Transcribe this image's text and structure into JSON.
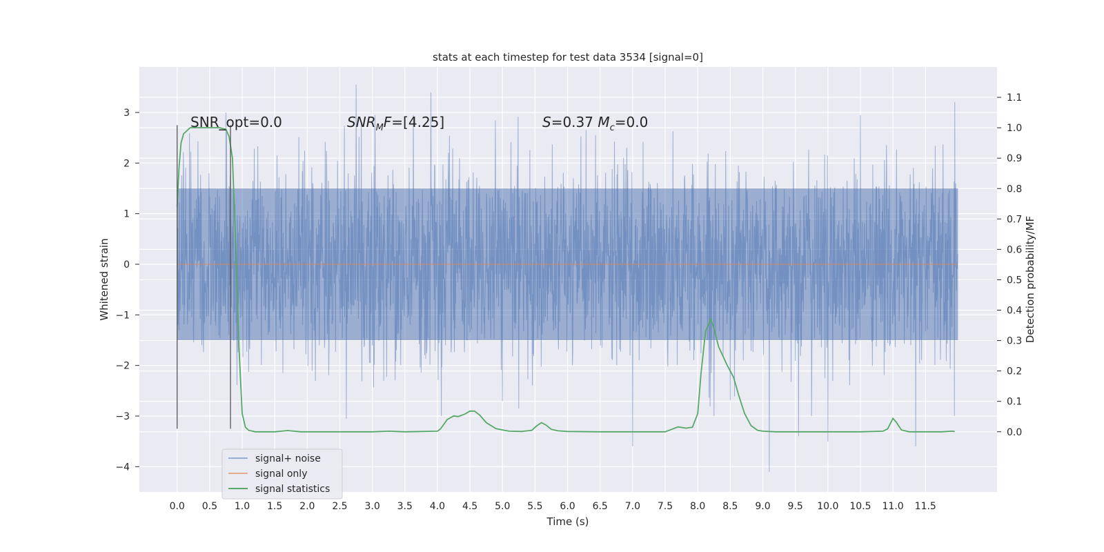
{
  "chart_data": {
    "type": "line",
    "title": "stats at each timestep for test data 3534 [signal=0]",
    "xlabel": "Time (s)",
    "ylabel": "Whitened strain",
    "ylabel_right": "Detection probability/MF",
    "xlim": [
      -0.58,
      12.6
    ],
    "ylim": [
      -4.5,
      3.9
    ],
    "ylim_right": [
      -0.198,
      1.2
    ],
    "x_ticks": [
      "0.0",
      "0.5",
      "1.0",
      "1.5",
      "2.0",
      "2.5",
      "3.0",
      "3.5",
      "4.0",
      "4.5",
      "5.0",
      "5.5",
      "6.0",
      "6.5",
      "7.0",
      "7.5",
      "8.0",
      "8.5",
      "9.0",
      "9.5",
      "10.0",
      "10.5",
      "11.0",
      "11.5"
    ],
    "y_ticks": [
      "3",
      "2",
      "1",
      "0",
      "−1",
      "−2",
      "−3",
      "−4"
    ],
    "y_ticks_right": [
      "1.1",
      "1.0",
      "0.9",
      "0.8",
      "0.7",
      "0.6",
      "0.5",
      "0.4",
      "0.3",
      "0.2",
      "0.1",
      "0.0"
    ],
    "grid": true,
    "legend_position": "lower-left",
    "annotations": [
      {
        "text": "SNR_opt=0.0",
        "x": 0.2,
        "y": 2.85
      },
      {
        "text": "SNR_MF=[4.25]",
        "x": 2.6,
        "y": 2.85
      },
      {
        "text": "S=0.37   M_c=0.0",
        "x": 5.6,
        "y": 2.85
      }
    ],
    "vertical_lines": [
      {
        "x": 0.0,
        "y_range": [
          -3.25,
          2.75
        ]
      },
      {
        "x": 0.82,
        "y_range": [
          -3.25,
          2.75
        ]
      }
    ],
    "series": [
      {
        "name": "signal+ noise",
        "color": "#4c72b0",
        "axis": "left",
        "description": "whitened noisy strain, noise band about ±1.5 with spikes",
        "x_range": [
          0.0,
          12.0
        ],
        "envelope": 1.5,
        "peaks": [
          {
            "x": 2.75,
            "y": 3.55
          },
          {
            "x": 3.9,
            "y": 3.4
          },
          {
            "x": 0.75,
            "y": 3.0
          },
          {
            "x": 11.95,
            "y": 3.2
          },
          {
            "x": 7.0,
            "y": -3.6
          },
          {
            "x": 9.1,
            "y": -4.1
          },
          {
            "x": 11.35,
            "y": -3.6
          },
          {
            "x": 2.6,
            "y": -3.05
          },
          {
            "x": 10.0,
            "y": -3.5
          },
          {
            "x": 9.55,
            "y": -3.4
          }
        ]
      },
      {
        "name": "signal only",
        "color": "#dd8452",
        "axis": "left",
        "x": [
          0.0,
          12.0
        ],
        "values": [
          0.0,
          0.0
        ]
      },
      {
        "name": "signal statistics",
        "color": "#55a868",
        "axis": "right",
        "x": [
          0.0,
          0.03,
          0.06,
          0.1,
          0.15,
          0.2,
          0.3,
          0.5,
          0.65,
          0.75,
          0.8,
          0.85,
          0.9,
          0.95,
          1.0,
          1.05,
          1.1,
          1.2,
          1.5,
          1.7,
          1.9,
          2.5,
          3.0,
          3.25,
          3.5,
          4.0,
          4.05,
          4.15,
          4.25,
          4.32,
          4.42,
          4.5,
          4.57,
          4.65,
          4.75,
          4.9,
          5.1,
          5.3,
          5.45,
          5.53,
          5.6,
          5.67,
          5.75,
          5.85,
          6.0,
          6.5,
          7.0,
          7.5,
          7.6,
          7.7,
          7.82,
          7.92,
          8.0,
          8.05,
          8.12,
          8.2,
          8.25,
          8.32,
          8.45,
          8.55,
          8.63,
          8.72,
          8.82,
          8.92,
          9.0,
          9.2,
          10.0,
          10.5,
          10.85,
          10.92,
          11.0,
          11.05,
          11.13,
          11.25,
          11.5,
          11.75,
          11.9,
          11.95
        ],
        "values": [
          0.74,
          0.87,
          0.95,
          0.98,
          0.99,
          1.0,
          1.0,
          1.0,
          1.0,
          0.995,
          0.97,
          0.9,
          0.62,
          0.28,
          0.06,
          0.015,
          0.005,
          0.0,
          0.0,
          0.004,
          0.0,
          0.0,
          0.0,
          0.002,
          0.0,
          0.002,
          0.01,
          0.04,
          0.052,
          0.05,
          0.058,
          0.068,
          0.068,
          0.055,
          0.03,
          0.01,
          0.002,
          0.001,
          0.005,
          0.02,
          0.03,
          0.022,
          0.008,
          0.003,
          0.001,
          0.0,
          0.0,
          0.0,
          0.008,
          0.016,
          0.012,
          0.015,
          0.06,
          0.19,
          0.33,
          0.37,
          0.34,
          0.28,
          0.22,
          0.18,
          0.12,
          0.06,
          0.02,
          0.005,
          0.002,
          0.0,
          0.0,
          0.0,
          0.002,
          0.01,
          0.044,
          0.032,
          0.006,
          0.0,
          0.0,
          0.0,
          0.002,
          0.001
        ]
      }
    ]
  }
}
